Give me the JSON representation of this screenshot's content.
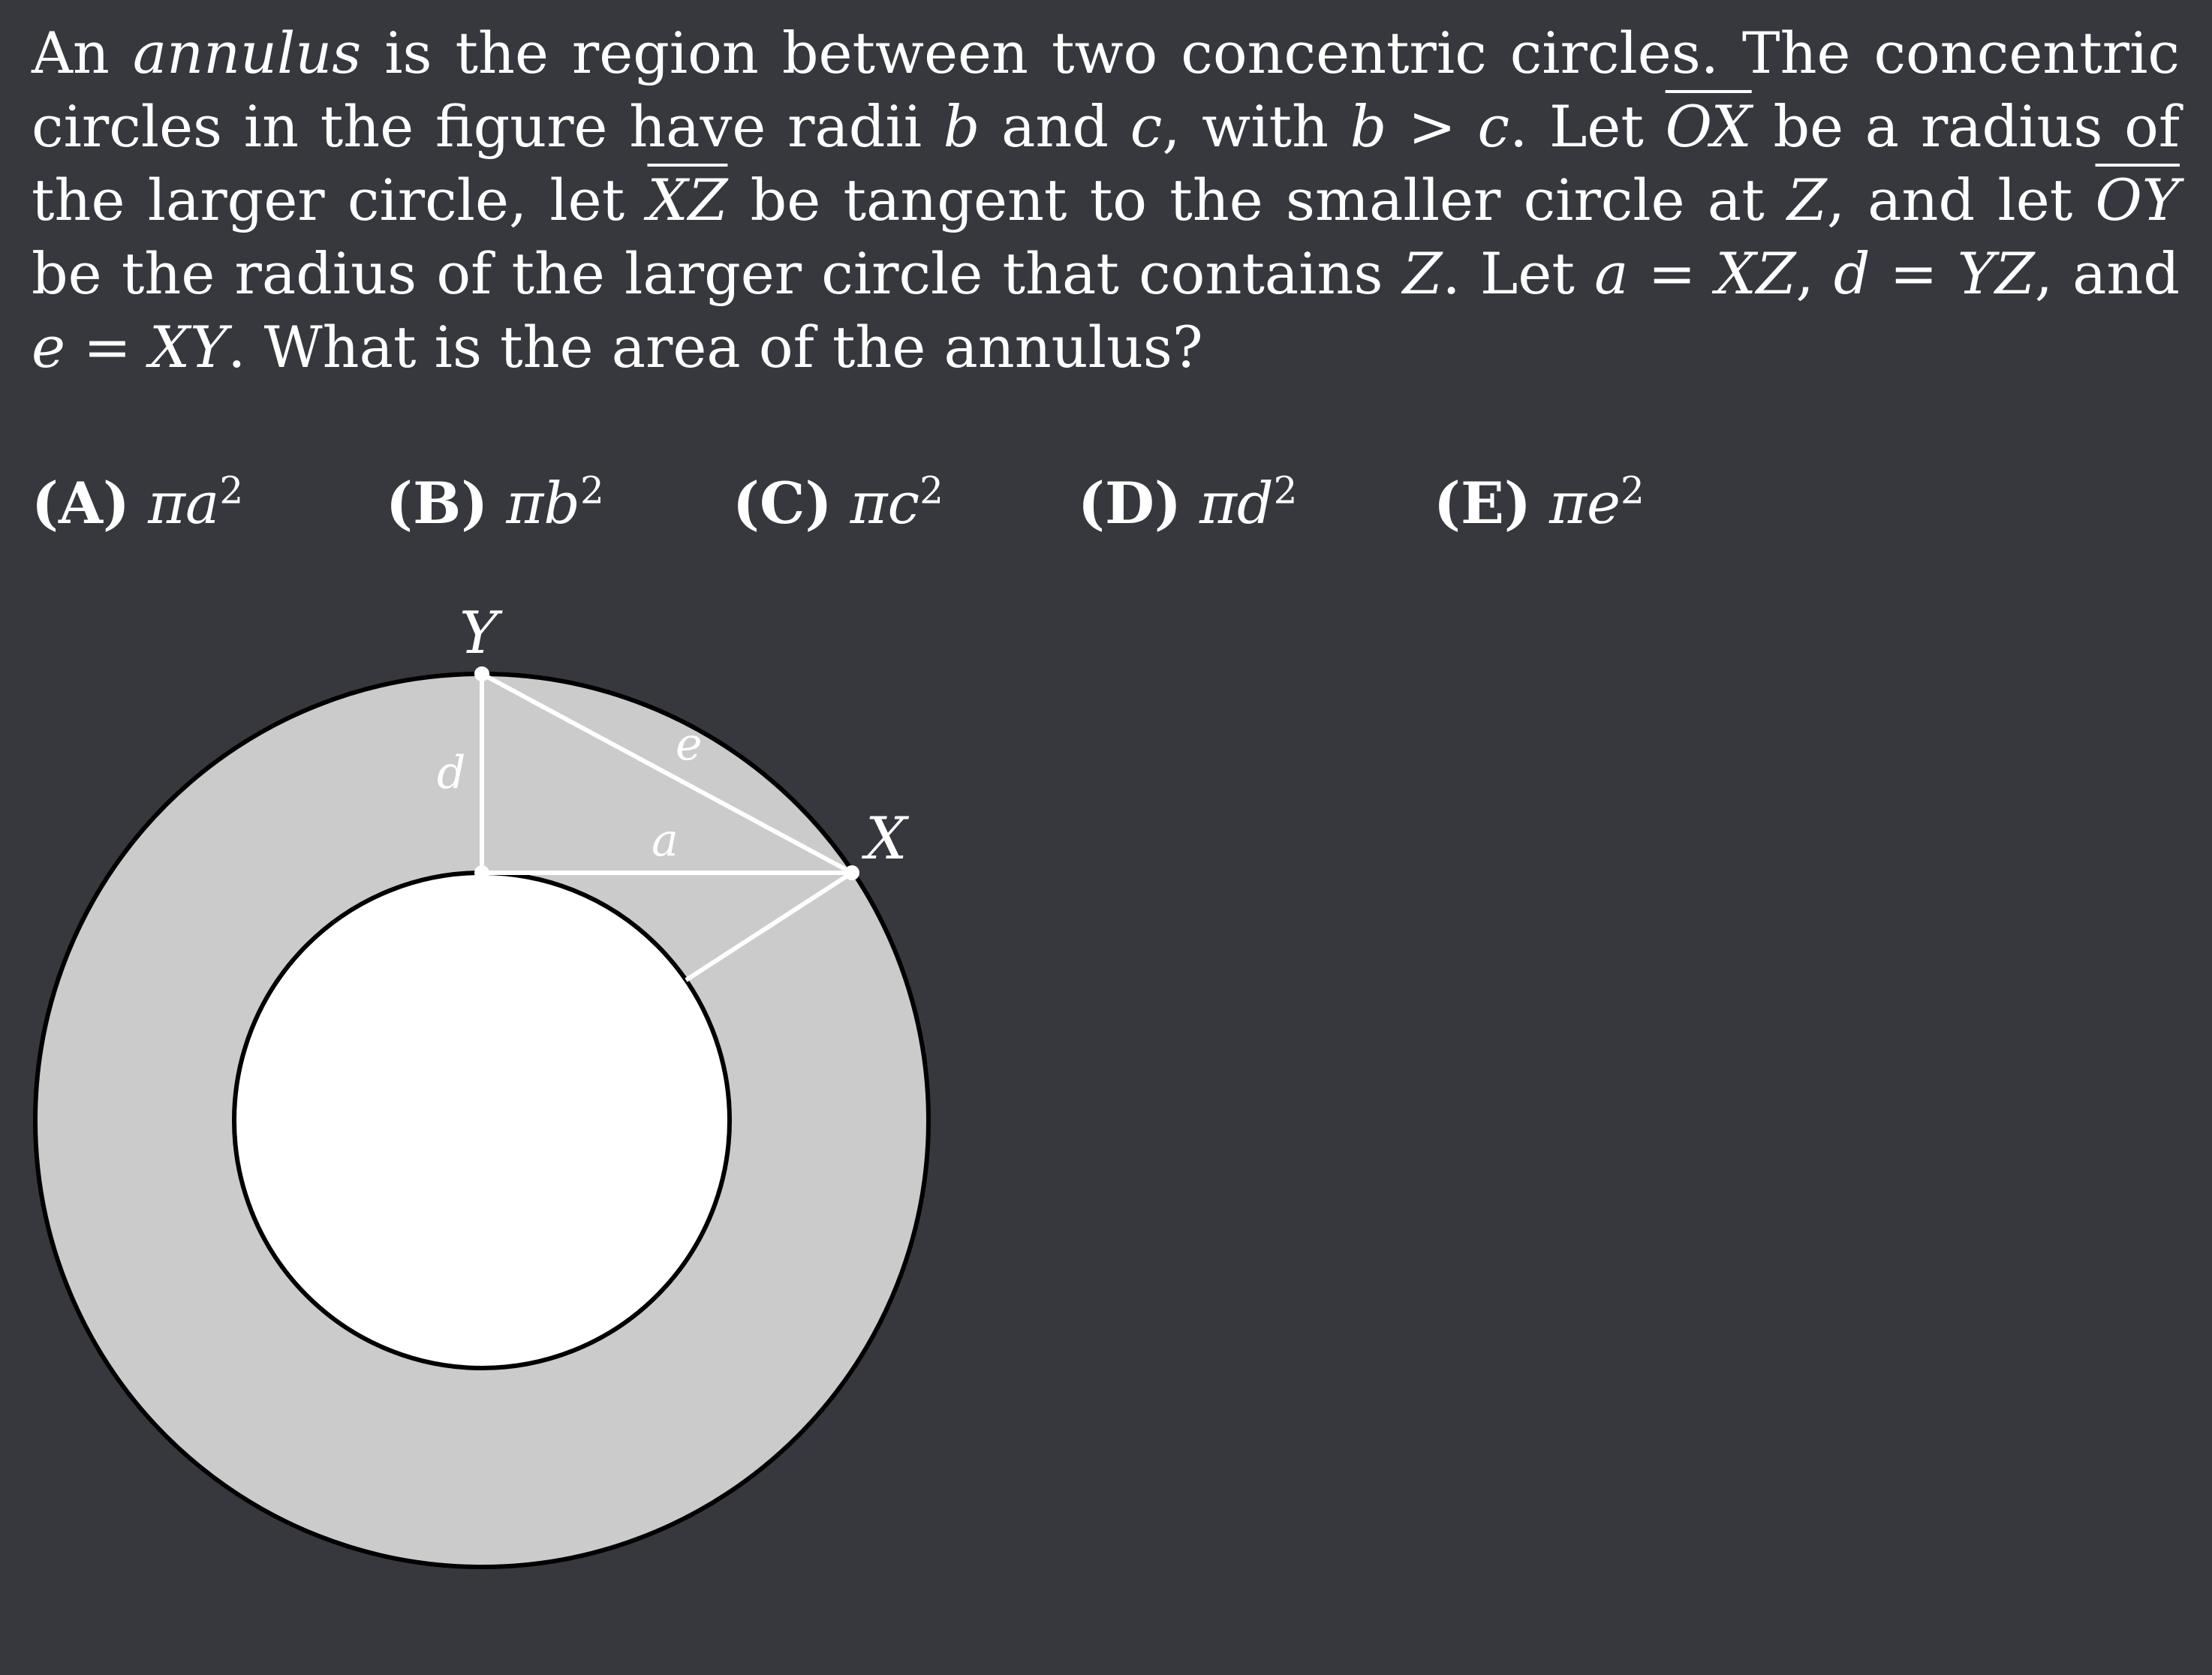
{
  "problem": {
    "p1": "An ",
    "annulus": "annulus",
    "p2": " is the region between two concentric circles. The concentric circles in the figure have radii ",
    "b": "b",
    "p3": " and ",
    "c": "c",
    "p4": ", with ",
    "ineq": "b > c",
    "p5": ". Let ",
    "OX": "OX",
    "p6": " be a radius of the larger circle, let ",
    "XZ": "XZ",
    "p7": " be tangent to the smaller circle at ",
    "Z1": "Z",
    "p8": ", and let ",
    "OY": "OY",
    "p9": " be the radius of the larger circle that contains ",
    "Z2": "Z",
    "p10": ". Let ",
    "eq1": "a = XZ",
    "p11": ", ",
    "eq2": "d = YZ",
    "p12": ", and ",
    "eq3": "e = XY",
    "p13": ". What is the area of the annulus?"
  },
  "choices": [
    {
      "letter": "(A)",
      "base": "πa",
      "exp": "2"
    },
    {
      "letter": "(B)",
      "base": "πb",
      "exp": "2"
    },
    {
      "letter": "(C)",
      "base": "πc",
      "exp": "2"
    },
    {
      "letter": "(D)",
      "base": "πd",
      "exp": "2"
    },
    {
      "letter": "(E)",
      "base": "πe",
      "exp": "2"
    }
  ],
  "diagram": {
    "points": {
      "Y": "Y",
      "X": "X"
    },
    "segments": {
      "a": "a",
      "d": "d",
      "e": "e"
    },
    "colors": {
      "annulus_fill": "#cbcbcb",
      "inner_fill": "#ffffff",
      "circle_stroke": "#000000",
      "segment_stroke": "#ffffff",
      "background": "#36383d"
    }
  }
}
